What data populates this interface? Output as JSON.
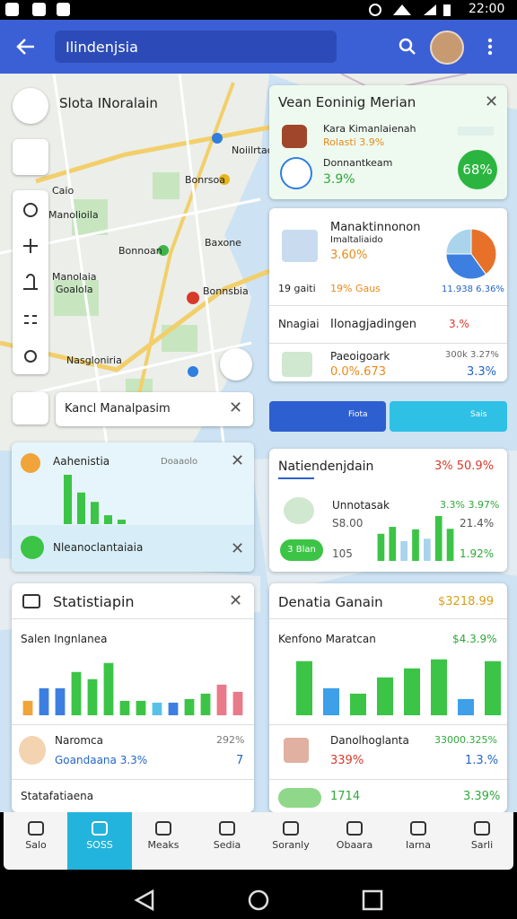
{
  "status_bar": {
    "time": "22:00"
  },
  "app_bar": {
    "search": "Ilindenjsia"
  },
  "map": {
    "title": "Slota INoralain",
    "labels": [
      "Noiilrtao",
      "Caio",
      "Manolioila",
      "Bonrsoa",
      "Baxone",
      "Manolaia",
      "Goalola",
      "Bonnsbia",
      "Nasgloniria",
      "Bonnoan"
    ],
    "search_chip": "Kancl Manalpasim"
  },
  "summary_card": {
    "title": "Vean Eoninig Merian",
    "item1_title": "Kara Kimanlaienah",
    "item1_sub": "Rolasti 3.9%",
    "item2_title": "Donnantkeam",
    "item2_value": "3.9%",
    "badge": "68%"
  },
  "detail_card": {
    "title": "Manaktinnonon",
    "subtitle": "Imaltaliaido",
    "value": "3.60%",
    "row_label": "19 gaiti",
    "row_value": "19% Gaus",
    "pie_caption": "11.938 6.36%",
    "pie": {
      "values": [
        40,
        35,
        25
      ],
      "colors": [
        "#e8712a",
        "#3d7fe0",
        "#a9d4ec"
      ]
    },
    "row2_label": "Nnagiai",
    "row2_title": "Ilonagjadingen",
    "row2_value": "3.%",
    "item_title": "Paeoigoark",
    "item_value": "0.0%.673",
    "item_top": "300k 3.27%",
    "item_right": "3.3%"
  },
  "buttons": [
    "Fiota",
    "Sais"
  ],
  "activity_card": {
    "title": "Aahenistia",
    "tag": "Doaaolo",
    "bars": {
      "values": [
        100,
        64,
        45,
        18,
        9
      ],
      "colors": [
        "#3cc447",
        "#3cc447",
        "#3cc447",
        "#3cc447",
        "#3cc447"
      ]
    },
    "item": "Nleanoclantaiaia"
  },
  "trend_card": {
    "title": "Natiendenjdain",
    "change": "3% 50.9%",
    "item": "Unnotasak",
    "value1": "S8.00",
    "value2": "105",
    "pill": "3 Blan",
    "right1": "3.3% 3.97%",
    "right2": "21.4%",
    "right3": "1.92%",
    "bars": {
      "values": [
        55,
        69,
        40,
        64,
        45,
        91,
        65
      ],
      "colors": [
        "#3cc447",
        "#3cc447",
        "#a9d4ec",
        "#3cc447",
        "#a9d4ec",
        "#3cc447",
        "#3cc447"
      ]
    }
  },
  "stats_card": {
    "title": "Statistiapin",
    "subtitle": "Salen Ingnlanea",
    "bars": {
      "values": [
        24,
        45,
        45,
        72,
        60,
        87,
        24,
        24,
        21,
        21,
        27,
        36,
        51,
        39
      ],
      "colors": [
        "#f0a43a",
        "#3d7fe0",
        "#3d7fe0",
        "#3cc447",
        "#3cc447",
        "#3cc447",
        "#3cc447",
        "#3cc447",
        "#5bc0e8",
        "#3d7fe0",
        "#3cc447",
        "#3cc447",
        "#e97a8a",
        "#e97a8a"
      ]
    },
    "item": "Naromca",
    "item_sub": "Goandaana 3.3%",
    "item_right": "292%",
    "item_right2": "7",
    "footer": "Statafatiaena"
  },
  "donation_card": {
    "title": "Denatia Ganain",
    "amount": "$3218.99",
    "subtitle": "Kenfono Maratcan",
    "subvalue": "$4.3.9%",
    "bars": {
      "values": [
        90,
        45,
        36,
        63,
        78,
        93,
        27,
        90
      ],
      "colors": [
        "#3cc447",
        "#3da0e8",
        "#3cc447",
        "#3cc447",
        "#3cc447",
        "#3cc447",
        "#3da0e8",
        "#3cc447"
      ]
    },
    "item": "Danolhoglanta",
    "item_value": "339%",
    "item_right": "33000.325%",
    "item_right2": "1.3.%",
    "pill_value": "1714",
    "right3": "3.39%"
  },
  "bottom_nav": [
    "Salo",
    "SOSS",
    "Meaks",
    "Sedia",
    "Soranly",
    "Obaara",
    "Iarna",
    "Sarli"
  ]
}
